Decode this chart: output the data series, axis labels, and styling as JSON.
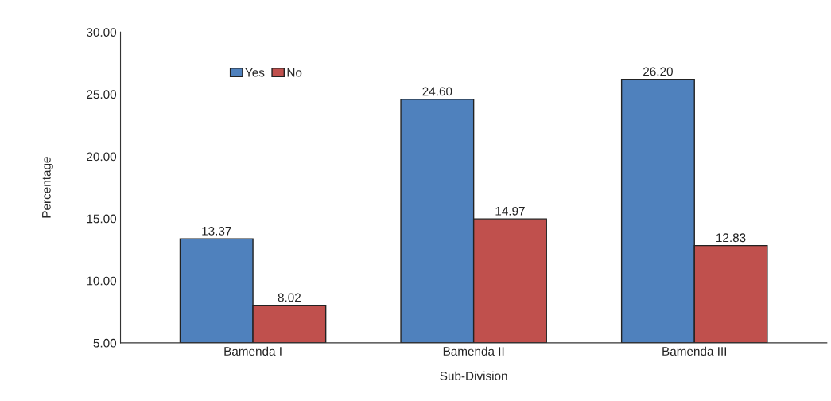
{
  "chart_data": {
    "type": "bar",
    "xlabel": "Sub-Division",
    "ylabel": "Percentage",
    "categories": [
      "Bamenda I",
      "Bamenda II",
      "Bamenda III"
    ],
    "series": [
      {
        "name": "Yes",
        "color": "#4f81bd",
        "values": [
          13.37,
          24.6,
          26.2
        ],
        "value_labels": [
          "13.37",
          "24.60",
          "26.20"
        ]
      },
      {
        "name": "No",
        "color": "#c0504d",
        "values": [
          8.02,
          14.97,
          12.83
        ],
        "value_labels": [
          "8.02",
          "14.97",
          "12.83"
        ]
      }
    ],
    "ylim": [
      5,
      30
    ],
    "yticks": [
      {
        "value": 5,
        "label": "5.00"
      },
      {
        "value": 10,
        "label": "10.00"
      },
      {
        "value": 15,
        "label": "15.00"
      },
      {
        "value": 20,
        "label": "20.00"
      },
      {
        "value": 25,
        "label": "25.00"
      },
      {
        "value": 30,
        "label": "30.00"
      }
    ],
    "grid": false,
    "legend": "top left"
  }
}
